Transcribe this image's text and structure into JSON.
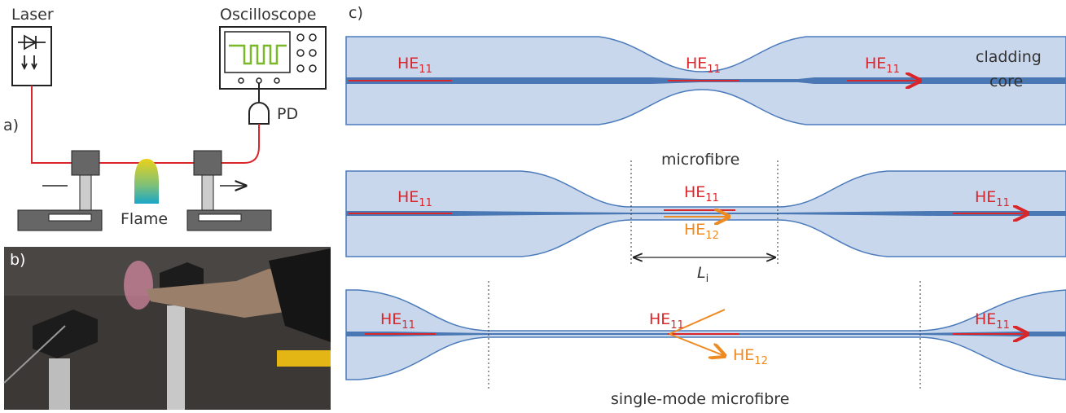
{
  "panel_a": {
    "label": "a)",
    "laser": "Laser",
    "oscilloscope": "Oscilloscope",
    "detector": "PD",
    "flame": "Flame"
  },
  "panel_b": {
    "label": "b)"
  },
  "panel_c": {
    "label": "c)",
    "fibre_1": {
      "modes": [
        {
          "name": "HE",
          "sub": "11"
        },
        {
          "name": "HE",
          "sub": "11"
        },
        {
          "name": "HE",
          "sub": "11"
        }
      ],
      "cladding": "cladding",
      "core": "core"
    },
    "fibre_2": {
      "title": "microfibre",
      "modes": [
        {
          "name": "HE",
          "sub": "11"
        },
        {
          "name": "HE",
          "sub": "11"
        },
        {
          "name": "HE",
          "sub": "12"
        },
        {
          "name": "HE",
          "sub": "11"
        }
      ],
      "length": {
        "name": "L",
        "sub": "i"
      }
    },
    "fibre_3": {
      "caption": "single-mode microfibre",
      "modes": [
        {
          "name": "HE",
          "sub": "11"
        },
        {
          "name": "HE",
          "sub": "11"
        },
        {
          "name": "HE",
          "sub": "12"
        },
        {
          "name": "HE",
          "sub": "11"
        }
      ]
    }
  }
}
